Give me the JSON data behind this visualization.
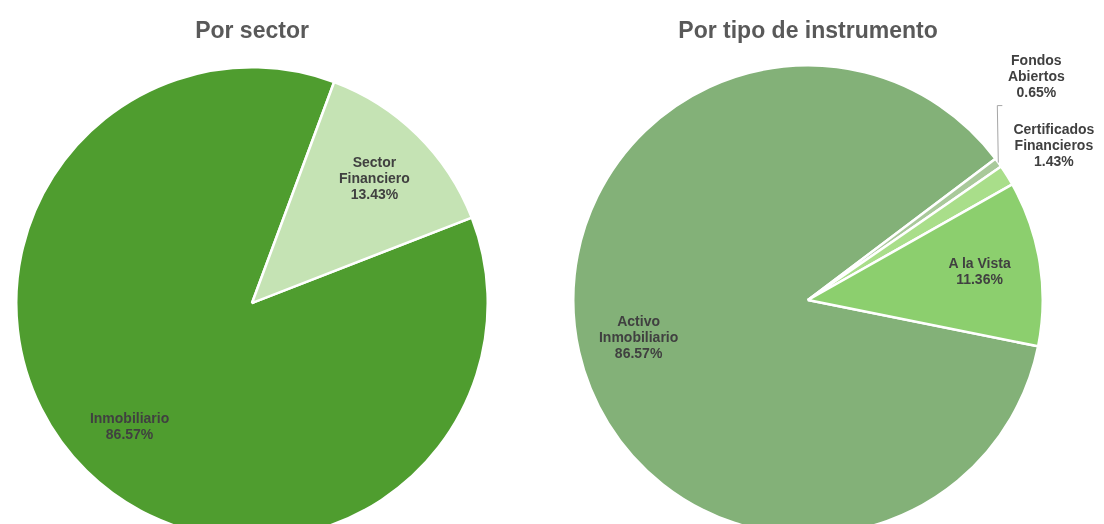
{
  "chart_data": [
    {
      "type": "pie",
      "title": "Por sector",
      "categories": [
        "Inmobiliario",
        "Sector Financiero"
      ],
      "values": [
        86.57,
        13.43
      ],
      "value_labels": [
        "86.57%",
        "13.43%"
      ],
      "colors": [
        "#4f9d2f",
        "#c5e3b4"
      ],
      "legend": false
    },
    {
      "type": "pie",
      "title": "Por tipo de instrumento",
      "categories": [
        "Activo Inmobiliario",
        "Fondos Abiertos",
        "Certificados Financieros",
        "A la Vista"
      ],
      "values": [
        86.57,
        0.65,
        1.43,
        11.36
      ],
      "value_labels": [
        "86.57%",
        "0.65%",
        "1.43%",
        "11.36%"
      ],
      "colors": [
        "#83b178",
        "#a9c99a",
        "#a9de8a",
        "#8ccf6e"
      ],
      "legend": false
    }
  ]
}
